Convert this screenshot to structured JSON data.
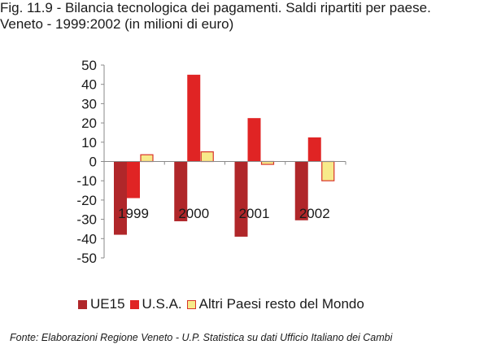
{
  "title": {
    "line1": "Fig. 11.9 - Bilancia tecnologica dei pagamenti. Saldi ripartiti per paese.",
    "line2": "Veneto - 1999:2002 (in milioni di euro)"
  },
  "source": "Fonte: Elaborazioni Regione Veneto - U.P. Statistica su dati Ufficio Italiano dei Cambi",
  "chart_data": {
    "type": "bar",
    "title": "Bilancia tecnologica dei pagamenti. Saldi ripartiti per paese. Veneto - 1999:2002 (in milioni di euro)",
    "xlabel": "",
    "ylabel": "",
    "categories": [
      "1999",
      "2000",
      "2001",
      "2002"
    ],
    "series": [
      {
        "name": "UE15",
        "values": [
          -38,
          -31,
          -39,
          -30.5
        ],
        "color": "#b0272a",
        "border": "#b0272a"
      },
      {
        "name": "U.S.A.",
        "values": [
          -19,
          45,
          22.5,
          12.5
        ],
        "color": "#e02424",
        "border": "#e02424"
      },
      {
        "name": "Altri Paesi resto del Mondo",
        "values": [
          3.5,
          5,
          -1.5,
          -10
        ],
        "color": "#f7ea8a",
        "border": "#d8342a"
      }
    ],
    "ylim": [
      -50,
      50
    ],
    "yticks": [
      "50",
      "40",
      "30",
      "20",
      "10",
      "0",
      "-10",
      "-20",
      "-30",
      "-40",
      "-50"
    ],
    "grid": false,
    "legend_position": "bottom"
  }
}
